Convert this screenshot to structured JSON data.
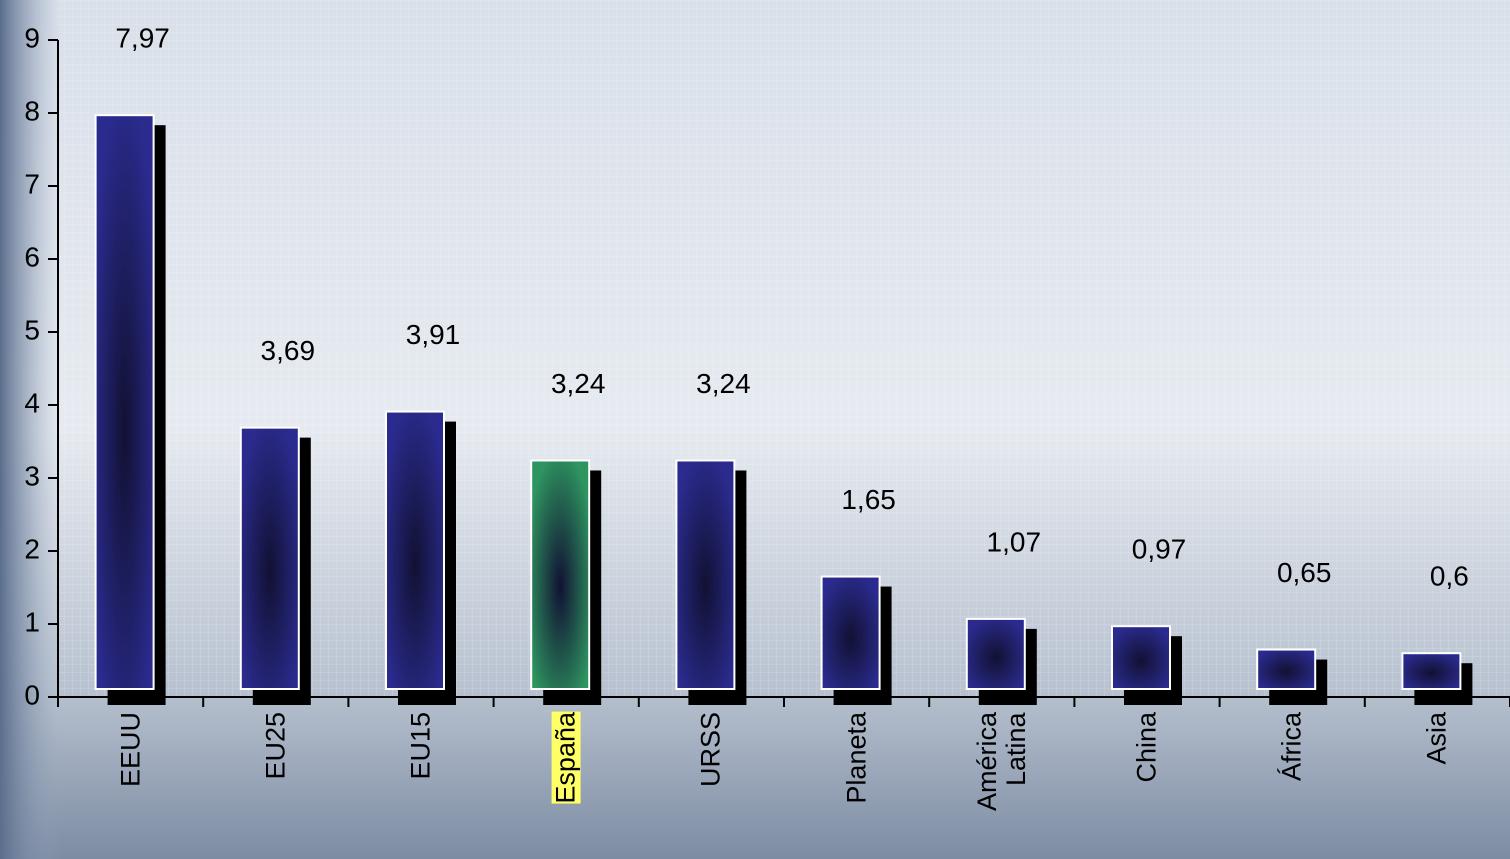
{
  "chart_data": {
    "type": "bar",
    "categories": [
      "EEUU",
      "EU25",
      "EU15",
      "España",
      "URSS",
      "Planeta",
      "América Latina",
      "China",
      "África",
      "Asia"
    ],
    "values": [
      7.97,
      3.69,
      3.91,
      3.24,
      3.24,
      1.65,
      1.07,
      0.97,
      0.65,
      0.6
    ],
    "value_labels": [
      "7,97",
      "3,69",
      "3,91",
      "3,24",
      "3,24",
      "1,65",
      "1,07",
      "0,97",
      "0,65",
      "0,6"
    ],
    "colors": [
      "#2b2b8f",
      "#2b2b8f",
      "#2b2b8f",
      "#2e9460",
      "#2b2b8f",
      "#2b2b8f",
      "#2b2b8f",
      "#2b2b8f",
      "#2b2b8f",
      "#2b2b8f"
    ],
    "ylim": [
      0,
      9
    ],
    "yticks": [
      0,
      1,
      2,
      3,
      4,
      5,
      6,
      7,
      8,
      9
    ]
  }
}
